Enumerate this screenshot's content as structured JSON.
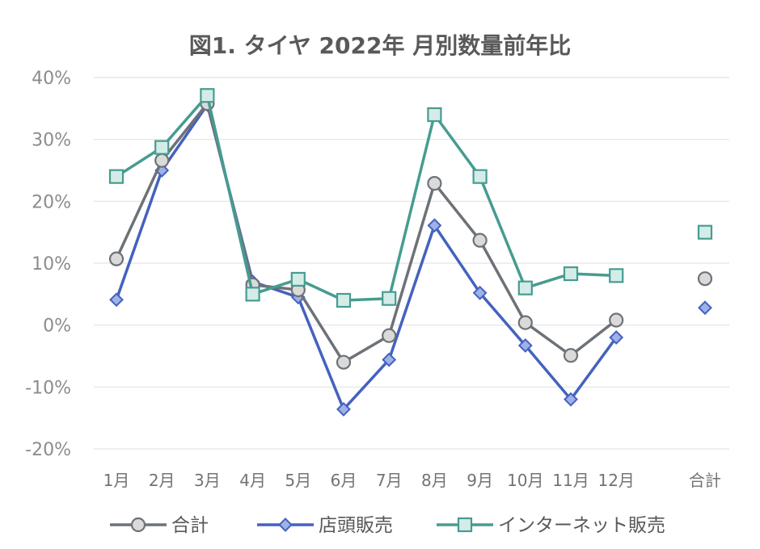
{
  "chart_data": {
    "type": "line",
    "title": "図1. タイヤ 2022年 月別数量前年比",
    "categories": [
      "1月",
      "2月",
      "3月",
      "4月",
      "5月",
      "6月",
      "7月",
      "8月",
      "9月",
      "10月",
      "11月",
      "12月"
    ],
    "total_category": "合計",
    "yticks": [
      "-20%",
      "-10%",
      "0%",
      "10%",
      "20%",
      "30%",
      "40%"
    ],
    "ylim": [
      -20,
      40
    ],
    "grid": true,
    "legend_position": "bottom",
    "series": [
      {
        "name": "合計",
        "color": "#6d7278",
        "marker": "circle",
        "values": [
          10.7,
          26.6,
          35.8,
          6.5,
          5.7,
          -6.0,
          -1.7,
          22.9,
          13.7,
          0.4,
          -4.9,
          0.8
        ],
        "total": 7.5
      },
      {
        "name": "店頭販売",
        "color": "#4462be",
        "marker": "diamond",
        "values": [
          4.1,
          25.0,
          35.6,
          7.0,
          4.5,
          -13.6,
          -5.6,
          16.1,
          5.2,
          -3.3,
          -12.0,
          -2.0
        ],
        "total": 2.8
      },
      {
        "name": "インターネット販売",
        "color": "#469c90",
        "marker": "square",
        "values": [
          24.0,
          28.7,
          37.1,
          5.0,
          7.4,
          4.0,
          4.3,
          34.0,
          24.0,
          6.0,
          8.3,
          8.0
        ],
        "total": 15.0
      }
    ]
  }
}
